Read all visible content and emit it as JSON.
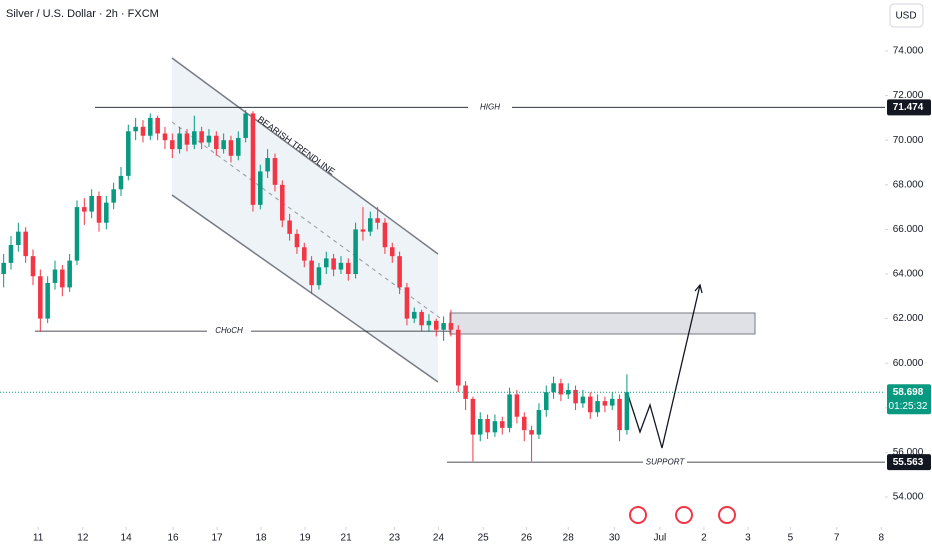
{
  "chart_data": {
    "type": "candlestick",
    "title": "Silver / U.S. Dollar · 2h · FXCM",
    "currency": "USD",
    "countdown": "01:25:32",
    "up_color": "#089981",
    "down_color": "#f23645",
    "ylim": [
      53.1,
      75.3
    ],
    "yticks": [
      {
        "value": 54,
        "label": "54.000"
      },
      {
        "value": 56,
        "label": "56.000"
      },
      {
        "value": 58,
        "label": "58.000"
      },
      {
        "value": 60,
        "label": "60.000"
      },
      {
        "value": 62,
        "label": "62.000"
      },
      {
        "value": 64,
        "label": "64.000"
      },
      {
        "value": 66,
        "label": "66.000"
      },
      {
        "value": 68,
        "label": "68.000"
      },
      {
        "value": 70,
        "label": "70.000"
      },
      {
        "value": 72,
        "label": "72.000"
      },
      {
        "value": 74,
        "label": "74.000"
      }
    ],
    "xlim": [
      -0.5,
      120.2
    ],
    "xticks": [
      {
        "value": 4.7,
        "label": "11"
      },
      {
        "value": 10.8,
        "label": "12"
      },
      {
        "value": 16.7,
        "label": "14"
      },
      {
        "value": 23.1,
        "label": "16"
      },
      {
        "value": 29.1,
        "label": "17"
      },
      {
        "value": 35.1,
        "label": "18"
      },
      {
        "value": 41.1,
        "label": "19"
      },
      {
        "value": 46.7,
        "label": "21"
      },
      {
        "value": 53.3,
        "label": "23"
      },
      {
        "value": 59.3,
        "label": "24"
      },
      {
        "value": 65.4,
        "label": "25"
      },
      {
        "value": 71.3,
        "label": "26"
      },
      {
        "value": 77,
        "label": "28"
      },
      {
        "value": 83.3,
        "label": "30"
      },
      {
        "value": 89.5,
        "label": "Jul"
      },
      {
        "value": 95.5,
        "label": "2"
      },
      {
        "value": 101.5,
        "label": "3"
      },
      {
        "value": 107.3,
        "label": "5"
      },
      {
        "value": 113.6,
        "label": "7"
      },
      {
        "value": 119.7,
        "label": "8"
      }
    ],
    "open": [
      64.0,
      64.5,
      65.3,
      65.9,
      64.8,
      63.9,
      62.0,
      63.6,
      64.2,
      63.4,
      64.6,
      67.0,
      66.8,
      67.5,
      66.3,
      67.2,
      67.8,
      68.4,
      70.4,
      70.6,
      70.2,
      71.0,
      70.3,
      70.0,
      69.6,
      70.3,
      69.8,
      70.4,
      69.9,
      70.2,
      69.6,
      70.0,
      69.3,
      70.1,
      71.2,
      67.1,
      68.6,
      69.2,
      68.0,
      66.4,
      65.8,
      65.2,
      64.6,
      63.5,
      64.3,
      64.7,
      64.2,
      64.5,
      64.0,
      66.0,
      65.9,
      66.5,
      66.3,
      65.2,
      64.8,
      63.4,
      62.0,
      62.3,
      61.7,
      61.9,
      61.5,
      61.8,
      61.5,
      59.0,
      58.4,
      56.8,
      57.5,
      56.9,
      57.4,
      57.1,
      58.6,
      57.6,
      57.0,
      56.8,
      57.9,
      58.7,
      59.1,
      58.6,
      58.8,
      58.2,
      58.5,
      57.8,
      58.3,
      58.1,
      58.4,
      57.0
    ],
    "high": [
      64.9,
      65.7,
      66.3,
      66.1,
      65.1,
      64.2,
      63.9,
      64.6,
      64.4,
      64.9,
      67.3,
      67.4,
      67.8,
      67.7,
      67.5,
      68.1,
      68.8,
      70.7,
      71.0,
      70.9,
      71.2,
      71.1,
      70.6,
      70.3,
      70.6,
      70.5,
      71.1,
      70.6,
      70.5,
      70.4,
      70.3,
      70.2,
      70.4,
      71.35,
      71.3,
      68.9,
      69.6,
      69.4,
      68.2,
      66.7,
      66.0,
      65.4,
      64.8,
      64.5,
      65.0,
      64.9,
      64.8,
      64.7,
      66.3,
      67.0,
      66.8,
      67.0,
      66.5,
      65.4,
      65.0,
      63.6,
      62.5,
      62.4,
      62.2,
      62.0,
      62.1,
      62.4,
      61.7,
      59.2,
      58.5,
      57.8,
      57.7,
      57.7,
      57.6,
      58.9,
      58.8,
      57.8,
      57.2,
      58.2,
      59.0,
      59.4,
      59.3,
      59.1,
      59.0,
      58.8,
      58.7,
      58.6,
      58.5,
      58.7,
      58.6,
      59.5
    ],
    "low": [
      63.4,
      64.2,
      65.0,
      64.5,
      63.5,
      61.4,
      61.8,
      63.3,
      63.0,
      63.2,
      64.4,
      66.2,
      66.5,
      65.9,
      66.0,
      66.9,
      67.5,
      68.2,
      70.0,
      69.9,
      70.0,
      70.0,
      69.6,
      69.2,
      69.4,
      69.5,
      69.6,
      69.6,
      69.7,
      69.3,
      69.4,
      69.0,
      69.1,
      69.9,
      66.8,
      66.9,
      68.3,
      67.7,
      66.1,
      65.5,
      64.9,
      64.3,
      63.1,
      63.3,
      64.0,
      63.9,
      64.0,
      63.7,
      63.8,
      65.5,
      65.7,
      66.0,
      64.9,
      64.5,
      63.1,
      61.7,
      61.8,
      61.4,
      61.4,
      61.2,
      61.0,
      61.2,
      58.7,
      57.9,
      55.6,
      56.5,
      56.6,
      56.7,
      56.8,
      56.9,
      57.3,
      56.5,
      55.6,
      56.6,
      57.6,
      58.4,
      58.3,
      58.4,
      57.9,
      58.0,
      57.5,
      57.6,
      57.8,
      57.9,
      56.5,
      56.8
    ],
    "close": [
      64.5,
      65.3,
      65.9,
      64.8,
      63.9,
      62.0,
      63.6,
      64.2,
      63.4,
      64.6,
      67.0,
      66.8,
      67.5,
      66.3,
      67.2,
      67.8,
      68.4,
      70.4,
      70.6,
      70.2,
      71.0,
      70.3,
      70.0,
      69.6,
      70.3,
      69.8,
      70.4,
      69.9,
      70.2,
      69.6,
      70.0,
      69.3,
      70.1,
      71.2,
      67.1,
      68.6,
      69.2,
      68.0,
      66.4,
      65.8,
      65.2,
      64.6,
      63.5,
      64.3,
      64.7,
      64.2,
      64.5,
      64.0,
      66.0,
      65.9,
      66.5,
      66.3,
      65.2,
      64.8,
      63.4,
      62.0,
      62.3,
      61.7,
      61.9,
      61.5,
      61.8,
      61.5,
      59.0,
      58.4,
      56.8,
      57.5,
      56.9,
      57.4,
      57.1,
      58.6,
      57.6,
      57.0,
      56.8,
      57.9,
      58.7,
      59.1,
      58.6,
      58.8,
      58.2,
      58.5,
      57.8,
      58.3,
      58.1,
      58.4,
      57.0,
      58.698
    ],
    "levels": [
      {
        "label": "HIGH",
        "value": 71.474
      },
      {
        "label": "CHoCH",
        "value": 61.44
      },
      {
        "label": "SUPPORT",
        "value": 55.563
      }
    ],
    "annotations": [
      "BEARISH TRENDLINE"
    ]
  }
}
